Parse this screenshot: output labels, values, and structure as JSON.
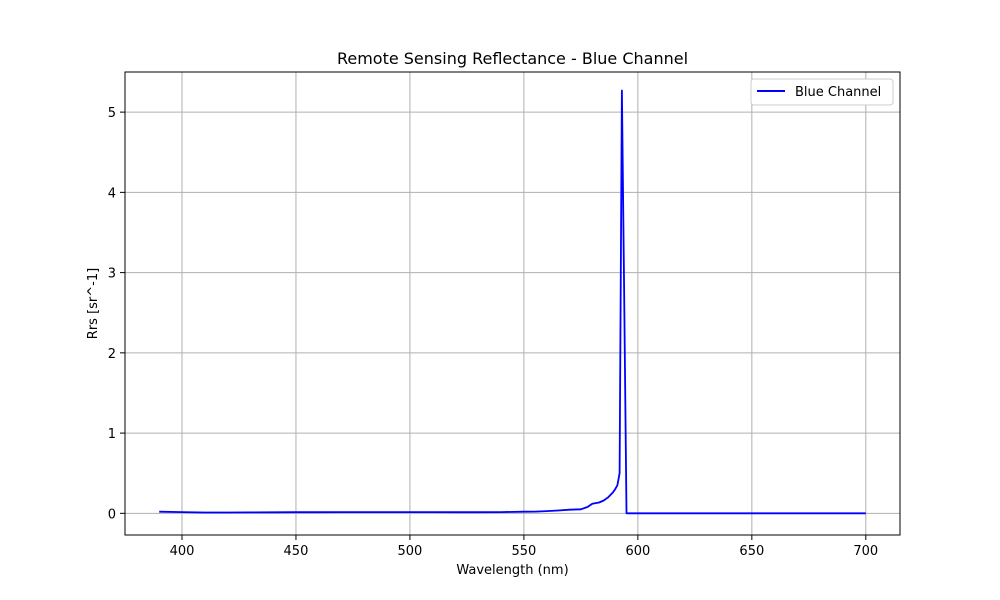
{
  "chart_data": {
    "type": "line",
    "title": "Remote Sensing Reflectance - Blue Channel",
    "xlabel": "Wavelength (nm)",
    "ylabel": "Rrs [sr^-1]",
    "xlim": [
      375,
      715
    ],
    "ylim": [
      -0.27,
      5.5
    ],
    "xticks": [
      400,
      450,
      500,
      550,
      600,
      650,
      700
    ],
    "yticks": [
      0,
      1,
      2,
      3,
      4,
      5
    ],
    "grid": true,
    "legend_position": "top-right",
    "series": [
      {
        "name": "Blue Channel",
        "color": "#0000ff",
        "x": [
          390,
          400,
          410,
          420,
          430,
          440,
          450,
          460,
          470,
          480,
          490,
          500,
          510,
          520,
          530,
          540,
          550,
          555,
          560,
          565,
          570,
          575,
          578,
          580,
          583,
          585,
          587,
          589,
          590,
          591,
          592,
          593,
          594,
          595,
          600,
          650,
          700
        ],
        "y": [
          0.02,
          0.015,
          0.01,
          0.011,
          0.012,
          0.013,
          0.014,
          0.014,
          0.015,
          0.015,
          0.016,
          0.016,
          0.015,
          0.014,
          0.014,
          0.016,
          0.02,
          0.022,
          0.028,
          0.035,
          0.045,
          0.05,
          0.08,
          0.12,
          0.135,
          0.16,
          0.2,
          0.26,
          0.3,
          0.35,
          0.5,
          5.27,
          2.7,
          0.0,
          0.0,
          0.0,
          0.0
        ]
      }
    ]
  }
}
